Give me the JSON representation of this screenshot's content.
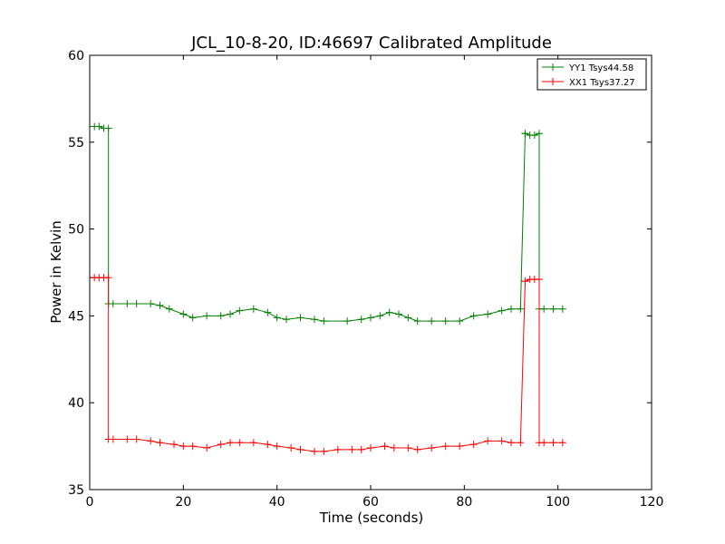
{
  "chart_data": {
    "type": "line",
    "title": "JCL_10-8-20, ID:46697 Calibrated Amplitude",
    "xlabel": "Time (seconds)",
    "ylabel": "Power in Kelvin",
    "xlim": [
      0,
      120
    ],
    "ylim": [
      35,
      60
    ],
    "xticks": [
      "0",
      "20",
      "40",
      "60",
      "80",
      "100",
      "120"
    ],
    "yticks": [
      "35",
      "40",
      "45",
      "50",
      "55",
      "60"
    ],
    "grid": false,
    "legend_position": "top-right",
    "series": [
      {
        "name": "YY1 Tsys44.58",
        "color": "#008000",
        "marker": "plus",
        "x": [
          0,
          1,
          2,
          3,
          4,
          4,
          5,
          8,
          10,
          13,
          15,
          17,
          20,
          22,
          25,
          28,
          30,
          32,
          35,
          38,
          40,
          42,
          45,
          48,
          50,
          55,
          58,
          60,
          62,
          64,
          66,
          68,
          70,
          73,
          76,
          79,
          82,
          85,
          88,
          90,
          92,
          93,
          93,
          94,
          95,
          96,
          96,
          97,
          99,
          101
        ],
        "y": [
          55.9,
          55.9,
          55.9,
          55.8,
          55.8,
          45.7,
          45.7,
          45.7,
          45.7,
          45.7,
          45.6,
          45.4,
          45.1,
          44.9,
          45.0,
          45.0,
          45.1,
          45.3,
          45.4,
          45.2,
          44.9,
          44.8,
          44.9,
          44.8,
          44.7,
          44.7,
          44.8,
          44.9,
          45.0,
          45.2,
          45.1,
          44.9,
          44.7,
          44.7,
          44.7,
          44.7,
          45.0,
          45.1,
          45.3,
          45.4,
          45.4,
          55.5,
          55.5,
          55.4,
          55.4,
          55.5,
          45.4,
          45.4,
          45.4,
          45.4
        ]
      },
      {
        "name": "XX1 Tsys37.27",
        "color": "#ff0000",
        "marker": "plus",
        "x": [
          0,
          1,
          2,
          3,
          4,
          4,
          5,
          8,
          10,
          13,
          15,
          18,
          20,
          22,
          25,
          28,
          30,
          32,
          35,
          38,
          40,
          43,
          45,
          48,
          50,
          53,
          56,
          58,
          60,
          63,
          65,
          68,
          70,
          73,
          76,
          79,
          82,
          85,
          88,
          90,
          92,
          93,
          93,
          94,
          95,
          96,
          96,
          97,
          99,
          101
        ],
        "y": [
          47.2,
          47.2,
          47.2,
          47.2,
          47.2,
          37.9,
          37.9,
          37.9,
          37.9,
          37.8,
          37.7,
          37.6,
          37.5,
          37.5,
          37.4,
          37.6,
          37.7,
          37.7,
          37.7,
          37.6,
          37.5,
          37.4,
          37.3,
          37.2,
          37.2,
          37.3,
          37.3,
          37.3,
          37.4,
          37.5,
          37.4,
          37.4,
          37.3,
          37.4,
          37.5,
          37.5,
          37.6,
          37.8,
          37.8,
          37.7,
          37.7,
          47.0,
          47.0,
          47.1,
          47.1,
          47.1,
          37.7,
          37.7,
          37.7,
          37.7
        ]
      }
    ]
  }
}
